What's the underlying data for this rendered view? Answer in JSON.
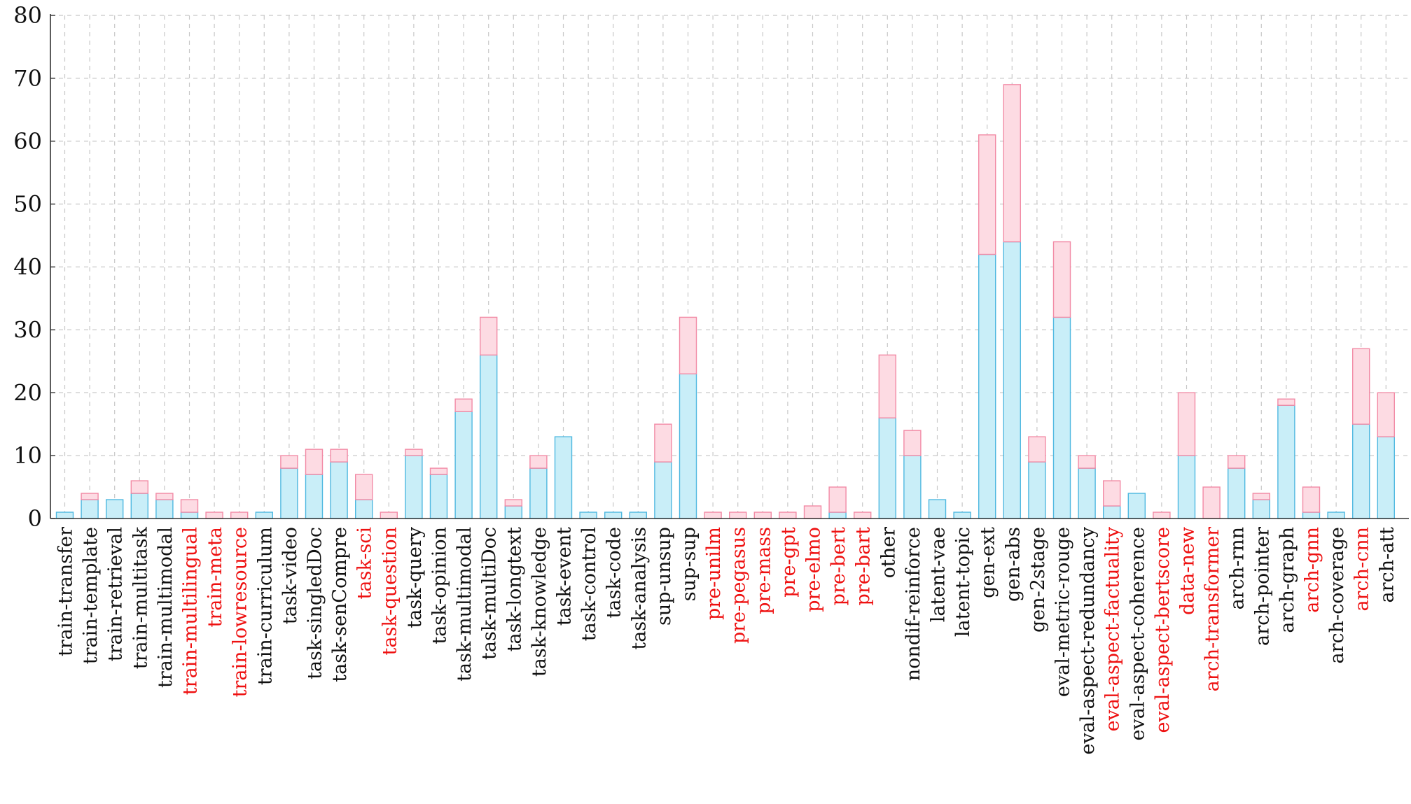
{
  "chart_data": {
    "type": "bar",
    "stacked": true,
    "title": "",
    "xlabel": "",
    "ylabel": "",
    "ylim": [
      0,
      80
    ],
    "yticks": [
      0,
      10,
      20,
      30,
      40,
      50,
      60,
      70,
      80
    ],
    "grid": true,
    "legend": "none",
    "colors": {
      "base_fill": "#c9eef8",
      "base_stroke": "#4fb8e0",
      "top_fill": "#fddbe3",
      "top_stroke": "#f28aa5",
      "highlight_label": "#ee1111",
      "normal_label": "#111111",
      "grid": "#c8c8c8",
      "axis": "#333333"
    },
    "categories": [
      "train-transfer",
      "train-template",
      "train-retrieval",
      "train-multitask",
      "train-multimodal",
      "train-multilingual",
      "train-meta",
      "train-lowresource",
      "train-curriculum",
      "task-video",
      "task-singledDoc",
      "task-senCompre",
      "task-sci",
      "task-question",
      "task-query",
      "task-opinion",
      "task-multimodal",
      "task-multiDoc",
      "task-longtext",
      "task-knowledge",
      "task-event",
      "task-control",
      "task-code",
      "task-analysis",
      "sup-unsup",
      "sup-sup",
      "pre-unilm",
      "pre-pegasus",
      "pre-mass",
      "pre-gpt",
      "pre-elmo",
      "pre-bert",
      "pre-bart",
      "other",
      "nondif-reinforce",
      "latent-vae",
      "latent-topic",
      "gen-ext",
      "gen-abs",
      "gen-2stage",
      "eval-metric-rouge",
      "eval-aspect-redundancy",
      "eval-aspect-factuality",
      "eval-aspect-coherence",
      "eval-aspect-bertscore",
      "data-new",
      "arch-transformer",
      "arch-rnn",
      "arch-pointer",
      "arch-graph",
      "arch-gnn",
      "arch-coverage",
      "arch-cnn",
      "arch-att"
    ],
    "highlighted": [
      false,
      false,
      false,
      false,
      false,
      true,
      true,
      true,
      false,
      false,
      false,
      false,
      true,
      true,
      false,
      false,
      false,
      false,
      false,
      false,
      false,
      false,
      false,
      false,
      false,
      false,
      true,
      true,
      true,
      true,
      true,
      true,
      true,
      false,
      false,
      false,
      false,
      false,
      false,
      false,
      false,
      false,
      true,
      false,
      true,
      true,
      true,
      false,
      false,
      false,
      true,
      false,
      true,
      false
    ],
    "series": [
      {
        "values": [
          1,
          3,
          3,
          4,
          3,
          1,
          0,
          0,
          1,
          8,
          7,
          9,
          3,
          0,
          10,
          7,
          17,
          26,
          2,
          8,
          13,
          1,
          1,
          1,
          9,
          23,
          0,
          0,
          0,
          0,
          0,
          1,
          0,
          16,
          10,
          3,
          1,
          42,
          44,
          9,
          32,
          8,
          2,
          4,
          0,
          10,
          0,
          8,
          3,
          18,
          1,
          1,
          15,
          13
        ]
      },
      {
        "values": [
          0,
          1,
          0,
          2,
          1,
          2,
          1,
          1,
          0,
          2,
          4,
          2,
          4,
          1,
          1,
          1,
          2,
          6,
          1,
          2,
          0,
          0,
          0,
          0,
          6,
          9,
          1,
          1,
          1,
          1,
          2,
          4,
          1,
          10,
          4,
          0,
          0,
          19,
          25,
          4,
          12,
          2,
          4,
          0,
          1,
          10,
          5,
          2,
          1,
          1,
          4,
          0,
          12,
          7
        ]
      }
    ]
  }
}
